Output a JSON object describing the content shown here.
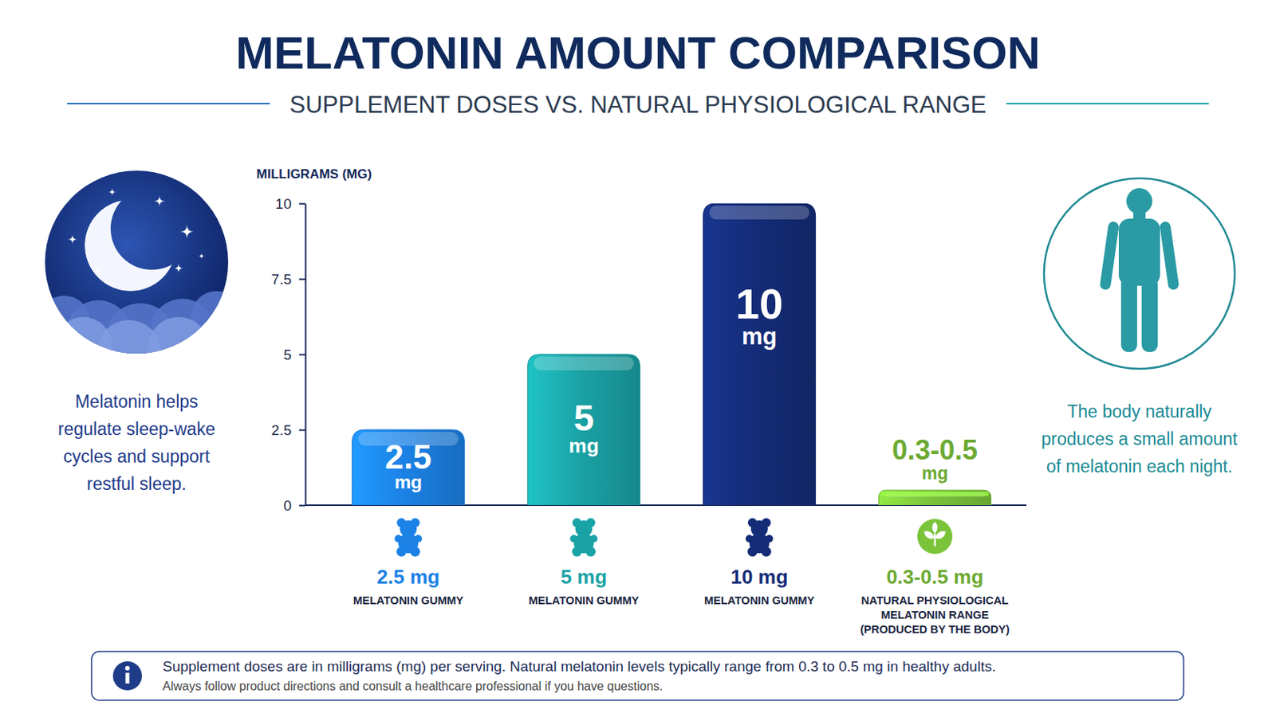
{
  "chart_data": {
    "type": "bar",
    "title": "MELATONIN AMOUNT COMPARISON",
    "subtitle": "SUPPLEMENT DOSES VS. NATURAL PHYSIOLOGICAL RANGE",
    "y_label": "MILLIGRAMS (MG)",
    "categories": [
      "MELATONIN GUMMY",
      "MELATONIN GUMMY",
      "MELATONIN GUMMY",
      "NATURAL PHYSIOLOGICAL MELATONIN RANGE (PRODUCED BY THE BODY)"
    ],
    "values": [
      2.5,
      5,
      10,
      0.5
    ],
    "range_low": [
      null,
      null,
      null,
      0.3
    ],
    "value_labels": [
      "2.5 mg",
      "5 mg",
      "10 mg",
      "0.3-0.5 mg"
    ],
    "colors": [
      "#1c82e6",
      "#1aa3a6",
      "#142c78",
      "#7bc43a"
    ],
    "ylim": [
      0,
      10
    ],
    "yticks": [
      0,
      2.5,
      5,
      7.5,
      10
    ],
    "grid": false,
    "data_labels": true,
    "annotations": [
      "Melatonin helps regulate sleep-wake cycles and support restful sleep.",
      "The body naturally produces a small amount of melatonin each night.",
      "Supplement doses are in milligrams (mg) per serving. Natural melatonin levels typically range from 0.3 to 0.5 mg in healthy adults.",
      "Always follow product directions and consult a healthcare professional if you have questions."
    ]
  }
}
